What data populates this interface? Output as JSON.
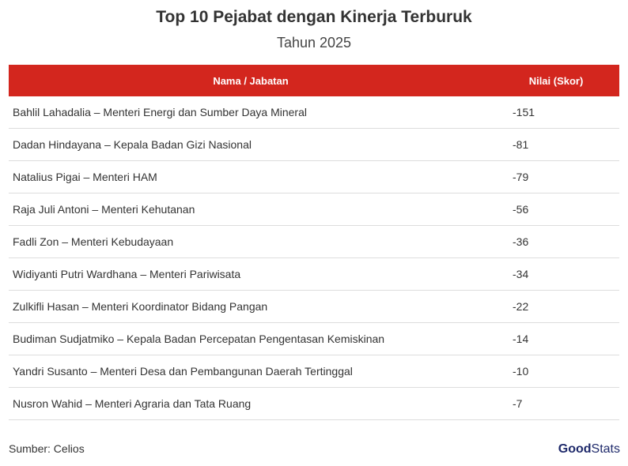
{
  "title": "Top 10 Pejabat dengan Kinerja Terburuk",
  "subtitle": "Tahun 2025",
  "table": {
    "columns": [
      "Nama / Jabatan",
      "Nilai (Skor)"
    ],
    "rows": [
      [
        "Bahlil Lahadalia – Menteri Energi dan Sumber Daya Mineral",
        -151
      ],
      [
        "Dadan Hindayana – Kepala Badan Gizi Nasional",
        -81
      ],
      [
        "Natalius Pigai – Menteri HAM",
        -79
      ],
      [
        "Raja Juli Antoni – Menteri Kehutanan",
        -56
      ],
      [
        "Fadli Zon – Menteri Kebudayaan",
        -36
      ],
      [
        "Widiyanti Putri Wardhana – Menteri Pariwisata",
        -34
      ],
      [
        "Zulkifli Hasan – Menteri Koordinator Bidang Pangan",
        -22
      ],
      [
        "Budiman Sudjatmiko – Kepala Badan Percepatan Pengentasan Kemiskinan",
        -14
      ],
      [
        "Yandri Susanto – Menteri Desa dan Pembangunan Daerah Tertinggal",
        -10
      ],
      [
        "Nusron Wahid – Menteri Agraria dan Tata Ruang",
        -7
      ]
    ]
  },
  "source": "Sumber: Celios",
  "logo": {
    "bold": "Good",
    "light": "Stats"
  }
}
